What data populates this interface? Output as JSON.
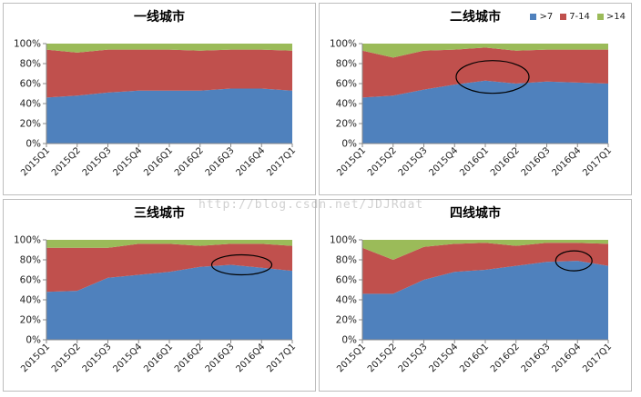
{
  "chart_data": [
    {
      "type": "area",
      "stacked": "percent",
      "title": "一线城市",
      "categories": [
        "2015Q1",
        "2015Q2",
        "2015Q3",
        "2015Q4",
        "2016Q1",
        "2016Q2",
        "2016Q3",
        "2016Q4",
        "2017Q1"
      ],
      "yticks": [
        "0%",
        "20%",
        "40%",
        "60%",
        "80%",
        "100%"
      ],
      "ylim": [
        0,
        100
      ],
      "series": [
        {
          "name": ">7",
          "values": [
            46,
            48,
            51,
            53,
            53,
            53,
            55,
            55,
            53
          ]
        },
        {
          "name": "7-14",
          "values": [
            48,
            43,
            43,
            41,
            41,
            40,
            39,
            39,
            40
          ]
        },
        {
          "name": ">14",
          "values": [
            6,
            9,
            6,
            6,
            6,
            7,
            6,
            6,
            7
          ]
        }
      ],
      "show_legend": false,
      "annotation": null
    },
    {
      "type": "area",
      "stacked": "percent",
      "title": "二线城市",
      "categories": [
        "2015Q1",
        "2015Q2",
        "2015Q3",
        "2015Q4",
        "2016Q1",
        "2016Q2",
        "2016Q3",
        "2016Q4",
        "2017Q1"
      ],
      "yticks": [
        "0%",
        "20%",
        "40%",
        "60%",
        "80%",
        "100%"
      ],
      "ylim": [
        0,
        100
      ],
      "series": [
        {
          "name": ">7",
          "values": [
            46,
            48,
            54,
            59,
            63,
            60,
            62,
            61,
            60
          ]
        },
        {
          "name": "7-14",
          "values": [
            47,
            38,
            39,
            35,
            33,
            33,
            32,
            33,
            34
          ]
        },
        {
          "name": ">14",
          "values": [
            7,
            14,
            7,
            6,
            4,
            7,
            6,
            6,
            6
          ]
        }
      ],
      "show_legend": true,
      "annotation": {
        "shape": "ellipse",
        "near_category": "2016Q1"
      }
    },
    {
      "type": "area",
      "stacked": "percent",
      "title": "三线城市",
      "categories": [
        "2015Q1",
        "2015Q2",
        "2015Q3",
        "2015Q4",
        "2016Q1",
        "2016Q2",
        "2016Q3",
        "2016Q4",
        "2017Q1"
      ],
      "yticks": [
        "0%",
        "20%",
        "40%",
        "60%",
        "80%",
        "100%"
      ],
      "ylim": [
        0,
        100
      ],
      "series": [
        {
          "name": ">7",
          "values": [
            48,
            49,
            62,
            65,
            68,
            73,
            75,
            72,
            69
          ]
        },
        {
          "name": "7-14",
          "values": [
            44,
            43,
            30,
            31,
            28,
            21,
            21,
            24,
            25
          ]
        },
        {
          "name": ">14",
          "values": [
            8,
            8,
            8,
            4,
            4,
            6,
            4,
            4,
            6
          ]
        }
      ],
      "show_legend": false,
      "annotation": {
        "shape": "ellipse",
        "near_category": "2016Q3"
      }
    },
    {
      "type": "area",
      "stacked": "percent",
      "title": "四线城市",
      "categories": [
        "2015Q1",
        "2015Q2",
        "2015Q3",
        "2015Q4",
        "2016Q1",
        "2016Q2",
        "2016Q3",
        "2016Q4",
        "2017Q1"
      ],
      "yticks": [
        "0%",
        "20%",
        "40%",
        "60%",
        "80%",
        "100%"
      ],
      "ylim": [
        0,
        100
      ],
      "series": [
        {
          "name": ">7",
          "values": [
            46,
            46,
            60,
            68,
            70,
            74,
            78,
            79,
            74
          ]
        },
        {
          "name": "7-14",
          "values": [
            46,
            34,
            33,
            28,
            27,
            20,
            19,
            18,
            22
          ]
        },
        {
          "name": ">14",
          "values": [
            8,
            20,
            7,
            4,
            3,
            6,
            3,
            3,
            4
          ]
        }
      ],
      "show_legend": false,
      "annotation": {
        "shape": "ellipse",
        "near_category": "2016Q4"
      }
    }
  ],
  "colors": {
    ">7": "#4f81bd",
    "7-14": "#c0504d",
    ">14": "#9bbb59"
  },
  "watermark": "http://blog.csdn.net/JDJRdat"
}
